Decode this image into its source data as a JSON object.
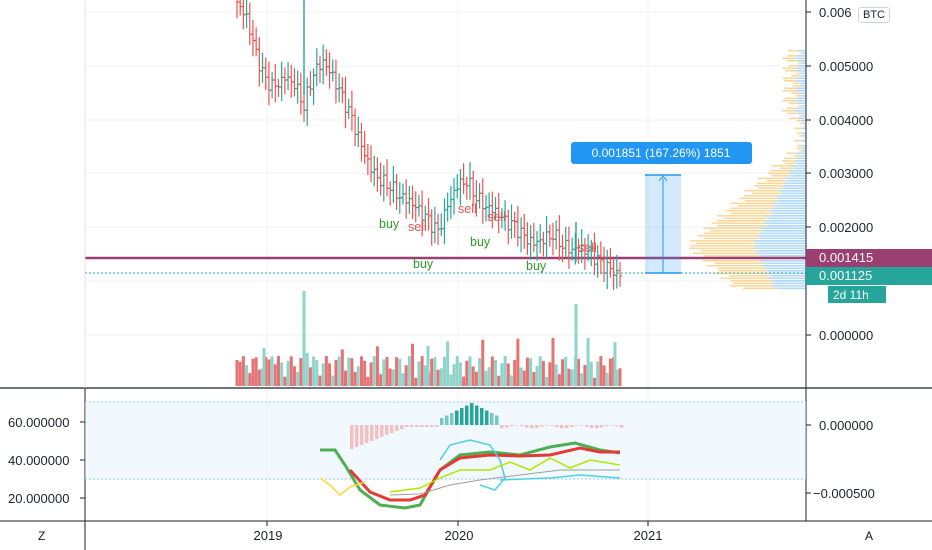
{
  "currency_badge": "BTC",
  "bottom_left_btn": "Z",
  "bottom_right_btn": "A",
  "price_axis": {
    "ticks": [
      "0.006",
      "0.005000",
      "0.004000",
      "0.003000",
      "0.002000",
      "0.000000"
    ],
    "current_label": "0.001125",
    "line_label": "0.001415",
    "countdown": "2d 11h"
  },
  "indicator_axis_left": {
    "ticks": [
      "60.000000",
      "40.000000",
      "20.000000"
    ]
  },
  "indicator_axis_right": {
    "ticks": [
      "0.000000",
      "−0.000500"
    ]
  },
  "time_axis": {
    "ticks": [
      "2019",
      "2020",
      "2021"
    ]
  },
  "measure_tooltip": "0.001851 (167.26%) 1851",
  "signals": [
    {
      "text": "buy",
      "color": "#2e9b2e"
    },
    {
      "text": "sell",
      "color": "#e25454"
    },
    {
      "text": "buy",
      "color": "#2e9b2e"
    },
    {
      "text": "sell",
      "color": "#e25454"
    },
    {
      "text": "sell",
      "color": "#e25454"
    },
    {
      "text": "buy",
      "color": "#2e9b2e"
    },
    {
      "text": "buy",
      "color": "#2e9b2e"
    },
    {
      "text": "sell",
      "color": "#e25454"
    }
  ],
  "colors": {
    "bull": "#26a69a",
    "bear": "#ef5350",
    "horizontal_line": "#9b3e72",
    "tooltip": "#2196f3",
    "current_price_bg": "#26a69a"
  },
  "chart_data": {
    "type": "candlestick",
    "price_range_y": [
      0.0,
      0.0063
    ],
    "candles_approx_close": [
      0.0062,
      0.0059,
      0.0052,
      0.0047,
      0.0046,
      0.0048,
      0.0047,
      0.0043,
      0.0049,
      0.0051,
      0.0048,
      0.0044,
      0.004,
      0.0035,
      0.0031,
      0.0029,
      0.0028,
      0.0026,
      0.0025,
      0.0023,
      0.0021,
      0.0019,
      0.0024,
      0.0028,
      0.0029,
      0.0026,
      0.0024,
      0.0023,
      0.0021,
      0.002,
      0.0018,
      0.0017,
      0.0018,
      0.0019,
      0.0017,
      0.0016,
      0.0016,
      0.0015,
      0.0013,
      0.0012,
      0.0011
    ]
  }
}
